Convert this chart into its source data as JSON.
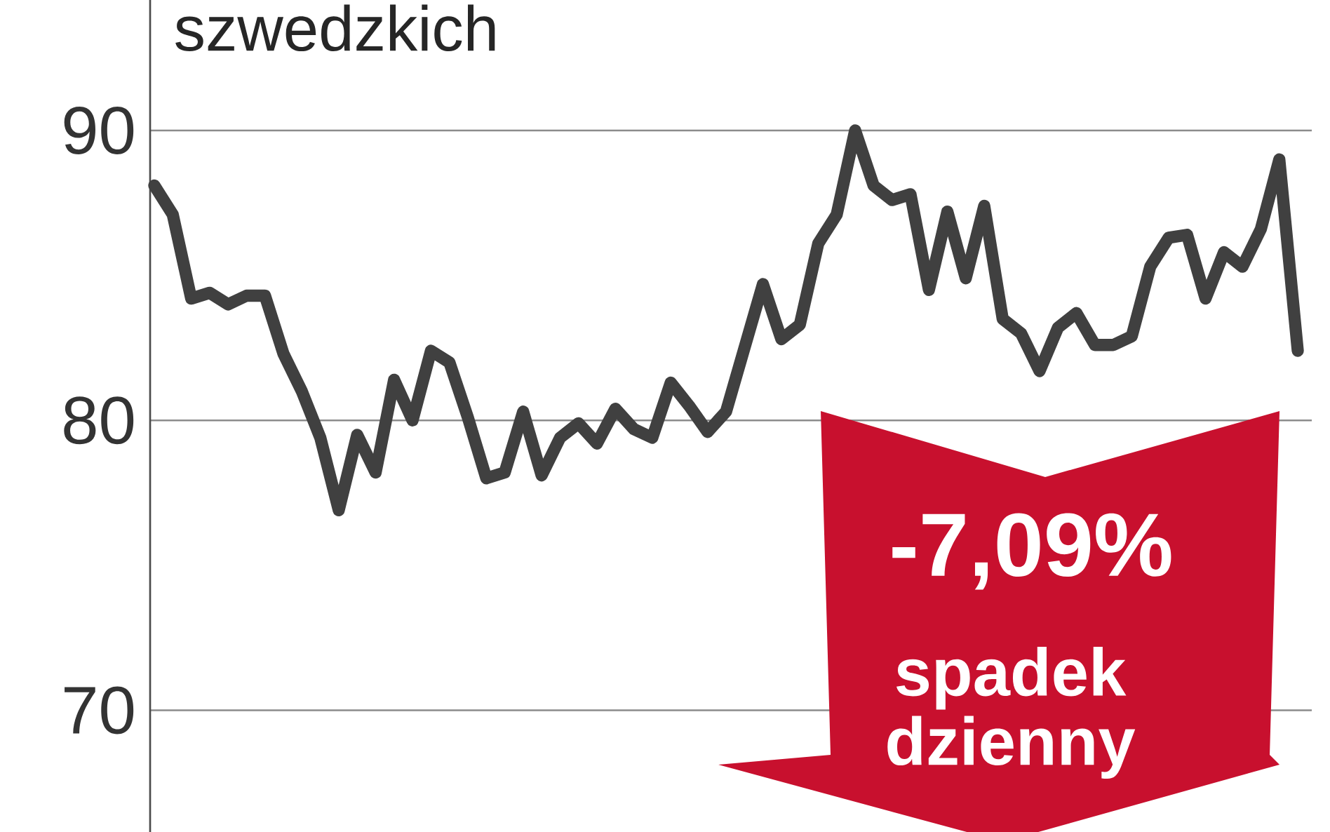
{
  "chart_data": {
    "type": "line",
    "title": "szwedzkich",
    "categories": [
      null,
      null,
      null,
      null,
      null,
      null,
      null,
      null,
      null,
      null,
      null,
      null,
      null,
      null,
      null,
      null,
      null,
      null,
      null,
      null,
      null,
      null,
      null,
      null,
      null,
      null,
      null,
      null,
      null,
      null,
      null,
      null,
      null,
      null,
      null,
      null,
      null,
      null,
      null,
      null,
      null,
      null,
      null,
      null,
      null,
      null,
      null,
      null,
      null,
      null,
      null,
      null,
      null,
      null,
      null,
      null,
      null,
      null,
      null,
      null,
      null,
      null,
      null
    ],
    "series": [
      {
        "color": "#404040",
        "values": [
          88.1,
          87.1,
          84.2,
          84.4,
          84.0,
          84.3,
          84.3,
          82.3,
          81.0,
          79.4,
          76.9,
          79.5,
          78.2,
          81.4,
          80.0,
          82.4,
          82.0,
          80.1,
          78.0,
          78.2,
          80.3,
          78.1,
          79.4,
          79.9,
          79.2,
          80.4,
          79.7,
          79.4,
          81.3,
          80.5,
          79.6,
          80.3,
          82.5,
          84.7,
          82.8,
          83.3,
          86.1,
          87.1,
          90.0,
          88.1,
          87.6,
          87.8,
          84.5,
          87.2,
          84.9,
          87.4,
          83.5,
          83.0,
          81.7,
          83.2,
          83.7,
          82.6,
          82.6,
          82.9,
          85.3,
          86.3,
          86.4,
          84.2,
          85.8,
          85.3,
          86.6,
          89.0,
          82.4
        ]
      }
    ],
    "ylim": [
      65.8,
      94.5
    ],
    "yticks": [
      70,
      80,
      90
    ],
    "grid": "y",
    "tick_labels": "y",
    "marker": "none",
    "line_style": "solid",
    "annotations": [
      "-7,09%",
      "spadek dzienny"
    ]
  }
}
